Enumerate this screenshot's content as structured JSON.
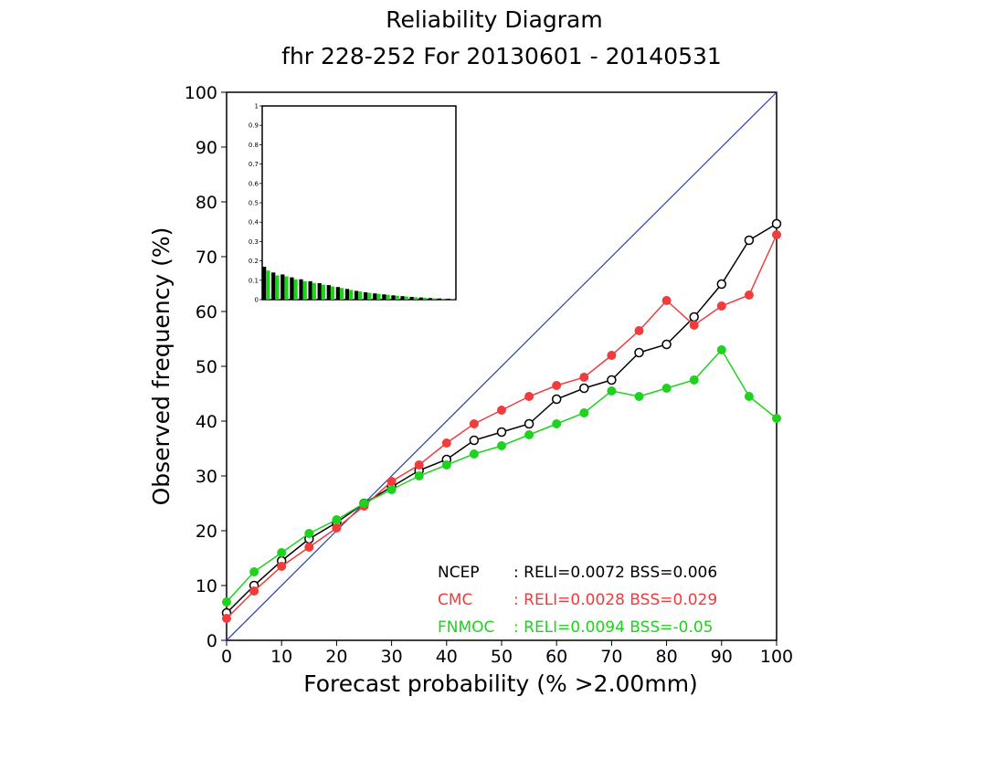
{
  "chart_data": {
    "type": "line",
    "title": "Reliability Diagram",
    "subtitle": "fhr 228-252 For 20130601 - 20140531",
    "xlabel": "Forecast probability (% >2.00mm)",
    "ylabel": "Observed frequency (%)",
    "xlim": [
      0,
      100
    ],
    "ylim": [
      0,
      100
    ],
    "xticks": [
      "0",
      "10",
      "20",
      "30",
      "40",
      "50",
      "60",
      "70",
      "80",
      "90",
      "100"
    ],
    "yticks": [
      "0",
      "10",
      "20",
      "30",
      "40",
      "50",
      "60",
      "70",
      "80",
      "90",
      "100"
    ],
    "diagonal": {
      "color": "#2b3bb0"
    },
    "x": [
      0,
      5,
      10,
      15,
      20,
      25,
      30,
      35,
      40,
      45,
      50,
      55,
      60,
      65,
      70,
      75,
      80,
      85,
      90,
      95,
      100
    ],
    "series": [
      {
        "color": "#000000",
        "marker": "open-circle",
        "values": [
          5,
          10,
          14.5,
          18.5,
          21.5,
          25,
          28,
          31,
          33,
          36.5,
          38,
          39.5,
          44,
          46,
          47.5,
          52.5,
          54,
          59,
          65,
          73,
          76
        ]
      },
      {
        "color": "#f03c3c",
        "marker": "filled-circle",
        "values": [
          4,
          9,
          13.5,
          17,
          20.5,
          24.5,
          29,
          32,
          36,
          39.5,
          42,
          44.5,
          46.5,
          48,
          52,
          56.5,
          62,
          57.5,
          61,
          63,
          74
        ]
      },
      {
        "color": "#1ed21e",
        "marker": "filled-circle",
        "values": [
          7,
          12.5,
          16,
          19.5,
          22,
          25,
          27.5,
          30,
          32,
          34,
          35.5,
          37.5,
          39.5,
          41.5,
          45.5,
          44.5,
          46,
          47.5,
          53,
          44.5,
          40.5
        ]
      }
    ],
    "legend": {
      "placement": "bottom-right",
      "entries": [
        {
          "name": "NCEP",
          "text": ": RELI=0.0072 BSS=0.006",
          "color": "#000000"
        },
        {
          "name": "CMC",
          "text": ": RELI=0.0028 BSS=0.029",
          "color": "#f03c3c"
        },
        {
          "name": "FNMOC",
          "text": ": RELI=0.0094 BSS=-0.05",
          "color": "#1ed21e"
        }
      ]
    },
    "inset": {
      "type": "bar",
      "placement": "top-left",
      "ylim": [
        0,
        1
      ],
      "yticks": [
        "0",
        "0.1",
        "0.2",
        "0.3",
        "0.4",
        "0.5",
        "0.6",
        "0.7",
        "0.8",
        "0.9",
        "1"
      ],
      "series": [
        {
          "color": "#000000",
          "values": [
            0.17,
            0.14,
            0.13,
            0.115,
            0.105,
            0.095,
            0.085,
            0.075,
            0.065,
            0.055,
            0.045,
            0.038,
            0.032,
            0.027,
            0.022,
            0.018,
            0.014,
            0.011,
            0.008,
            0.006,
            0.004
          ]
        },
        {
          "color": "#1ed21e",
          "values": [
            0.15,
            0.125,
            0.12,
            0.105,
            0.095,
            0.085,
            0.077,
            0.068,
            0.06,
            0.05,
            0.042,
            0.035,
            0.03,
            0.025,
            0.02,
            0.016,
            0.012,
            0.01,
            0.007,
            0.005,
            0.004
          ]
        }
      ]
    }
  }
}
